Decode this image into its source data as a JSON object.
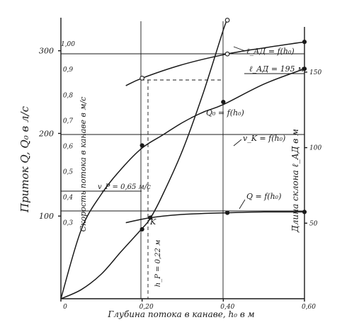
{
  "chart_data": {
    "type": "line",
    "xlabel": "Глубина потока в канаве, h₀ в м",
    "ylabel_left": "Приток Q, Q₀ в л/с",
    "ylabel_middle": "Скорость потока в канаве в м/с",
    "ylabel_right": "Длина склона ℓ_АД в м",
    "x_ticks": [
      {
        "value": 0,
        "label": "0"
      },
      {
        "value": 0.2,
        "label": "0,20"
      },
      {
        "value": 0.4,
        "label": "0,40"
      },
      {
        "value": 0.6,
        "label": "0,60"
      }
    ],
    "y_ticks": [
      {
        "value": 100,
        "label": "100"
      },
      {
        "value": 200,
        "label": "200"
      },
      {
        "value": 300,
        "label": "300"
      }
    ],
    "v_ticks": [
      {
        "value": 1.0,
        "label": "1,00"
      },
      {
        "value": 0.9,
        "label": "0,9"
      },
      {
        "value": 0.8,
        "label": "0,8"
      },
      {
        "value": 0.7,
        "label": "0,7"
      },
      {
        "value": 0.6,
        "label": "0,6"
      },
      {
        "value": 0.5,
        "label": "0,5"
      },
      {
        "value": 0.4,
        "label": "0,4"
      },
      {
        "value": 0.3,
        "label": "0,3"
      }
    ],
    "l_ticks": [
      {
        "value": 50,
        "label": "50"
      },
      {
        "value": 100,
        "label": "100"
      },
      {
        "value": 150,
        "label": "150"
      }
    ],
    "series": [
      {
        "name": "Q₀ = f(h₀)",
        "x": [
          0,
          0.05,
          0.1,
          0.15,
          0.2,
          0.22,
          0.25,
          0.3,
          0.35,
          0.4,
          0.41
        ],
        "y": [
          0,
          11,
          30,
          58,
          85,
          97,
          125,
          180,
          248,
          325,
          337
        ],
        "markers": [
          {
            "x": 0.2,
            "y": 84
          },
          {
            "x": 0.41,
            "y": 337,
            "open": true
          }
        ]
      },
      {
        "name": "v_K = f(h₀)",
        "units": "м/с",
        "x": [
          0,
          0.05,
          0.1,
          0.15,
          0.2,
          0.25,
          0.3,
          0.35,
          0.4,
          0.5,
          0.6
        ],
        "y": [
          0,
          0.27,
          0.41,
          0.51,
          0.59,
          0.64,
          0.69,
          0.73,
          0.76,
          0.84,
          0.9
        ],
        "markers": [
          {
            "x": 0.2,
            "y": 0.6
          },
          {
            "x": 0.4,
            "y": 0.77
          },
          {
            "x": 0.6,
            "y": 0.9
          }
        ]
      },
      {
        "name": "Q = f(h₀)",
        "x": [
          0.16,
          0.22,
          0.3,
          0.41,
          0.5,
          0.6
        ],
        "y": [
          92,
          98,
          102,
          104,
          105,
          105
        ],
        "markers": [
          {
            "x": 0.22,
            "y": 98
          },
          {
            "x": 0.41,
            "y": 104
          },
          {
            "x": 0.6,
            "y": 105
          }
        ]
      },
      {
        "name": "ℓ_АД = f(h₀)",
        "units": "м",
        "x": [
          0.16,
          0.2,
          0.3,
          0.41,
          0.5,
          0.6
        ],
        "y": [
          141,
          146,
          155,
          162,
          166,
          170
        ],
        "markers": [
          {
            "x": 0.2,
            "y": 146,
            "open": true
          },
          {
            "x": 0.41,
            "y": 162,
            "open": true
          },
          {
            "x": 0.6,
            "y": 170
          }
        ]
      }
    ],
    "annotations": {
      "q0_label": "Q₀ = f(h₀)",
      "v_label": "v_K = f(h₀)",
      "q_label": "Q = f(h₀)",
      "l_label": "ℓ_АД = f(h₀)",
      "l_value_label": "ℓ_АД = 195 м",
      "vp_label": "v_P = 0,65 м/с",
      "k_label": "K",
      "hp_label": "h_P = 0,22 м"
    },
    "xlim": [
      0,
      0.6
    ],
    "ylim": [
      0,
      340
    ],
    "vlim": [
      0,
      1.1
    ],
    "llim": [
      0,
      186
    ]
  }
}
